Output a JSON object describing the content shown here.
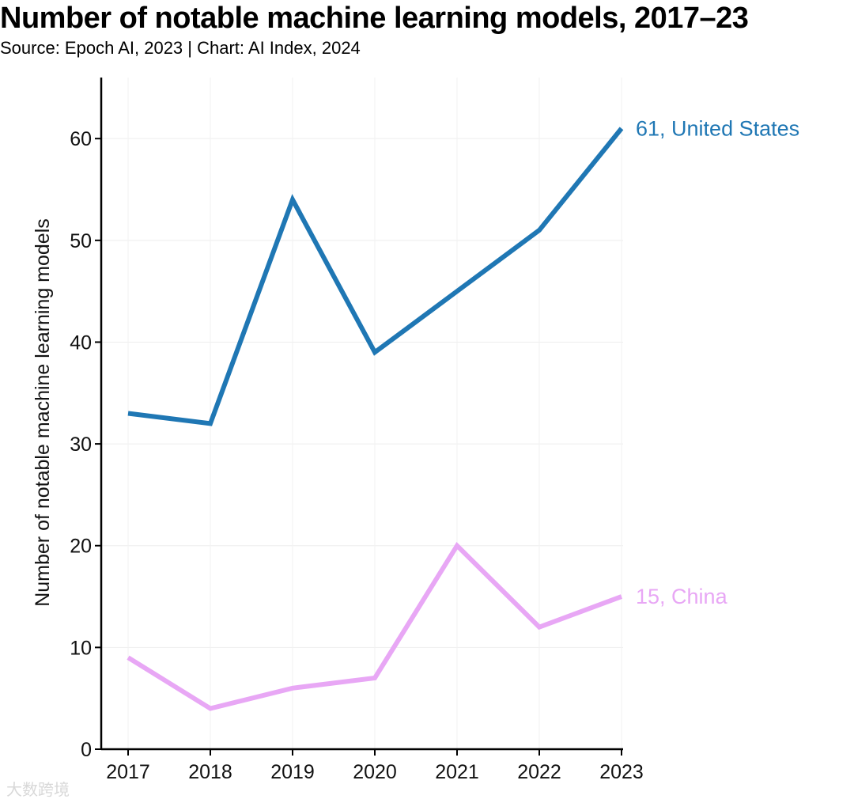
{
  "chart_data": {
    "type": "line",
    "title": "Number of notable machine learning models, 2017–23",
    "subtitle": "Source: Epoch AI, 2023 | Chart: AI Index, 2024",
    "xlabel": "",
    "ylabel": "Number of notable machine learning models",
    "x": [
      "2017",
      "2018",
      "2019",
      "2020",
      "2021",
      "2022",
      "2023"
    ],
    "ylim": [
      0,
      66
    ],
    "yticks": [
      0,
      10,
      20,
      30,
      40,
      50,
      60
    ],
    "grid": true,
    "series": [
      {
        "name": "United States",
        "label": "61, United States",
        "color": "#1f77b4",
        "values": [
          33,
          32,
          54,
          39,
          45,
          51,
          61
        ]
      },
      {
        "name": "China",
        "label": "15, China",
        "color": "#e8a7f5",
        "values": [
          9,
          4,
          6,
          7,
          20,
          12,
          15
        ]
      }
    ]
  },
  "watermark": "大数跨境"
}
